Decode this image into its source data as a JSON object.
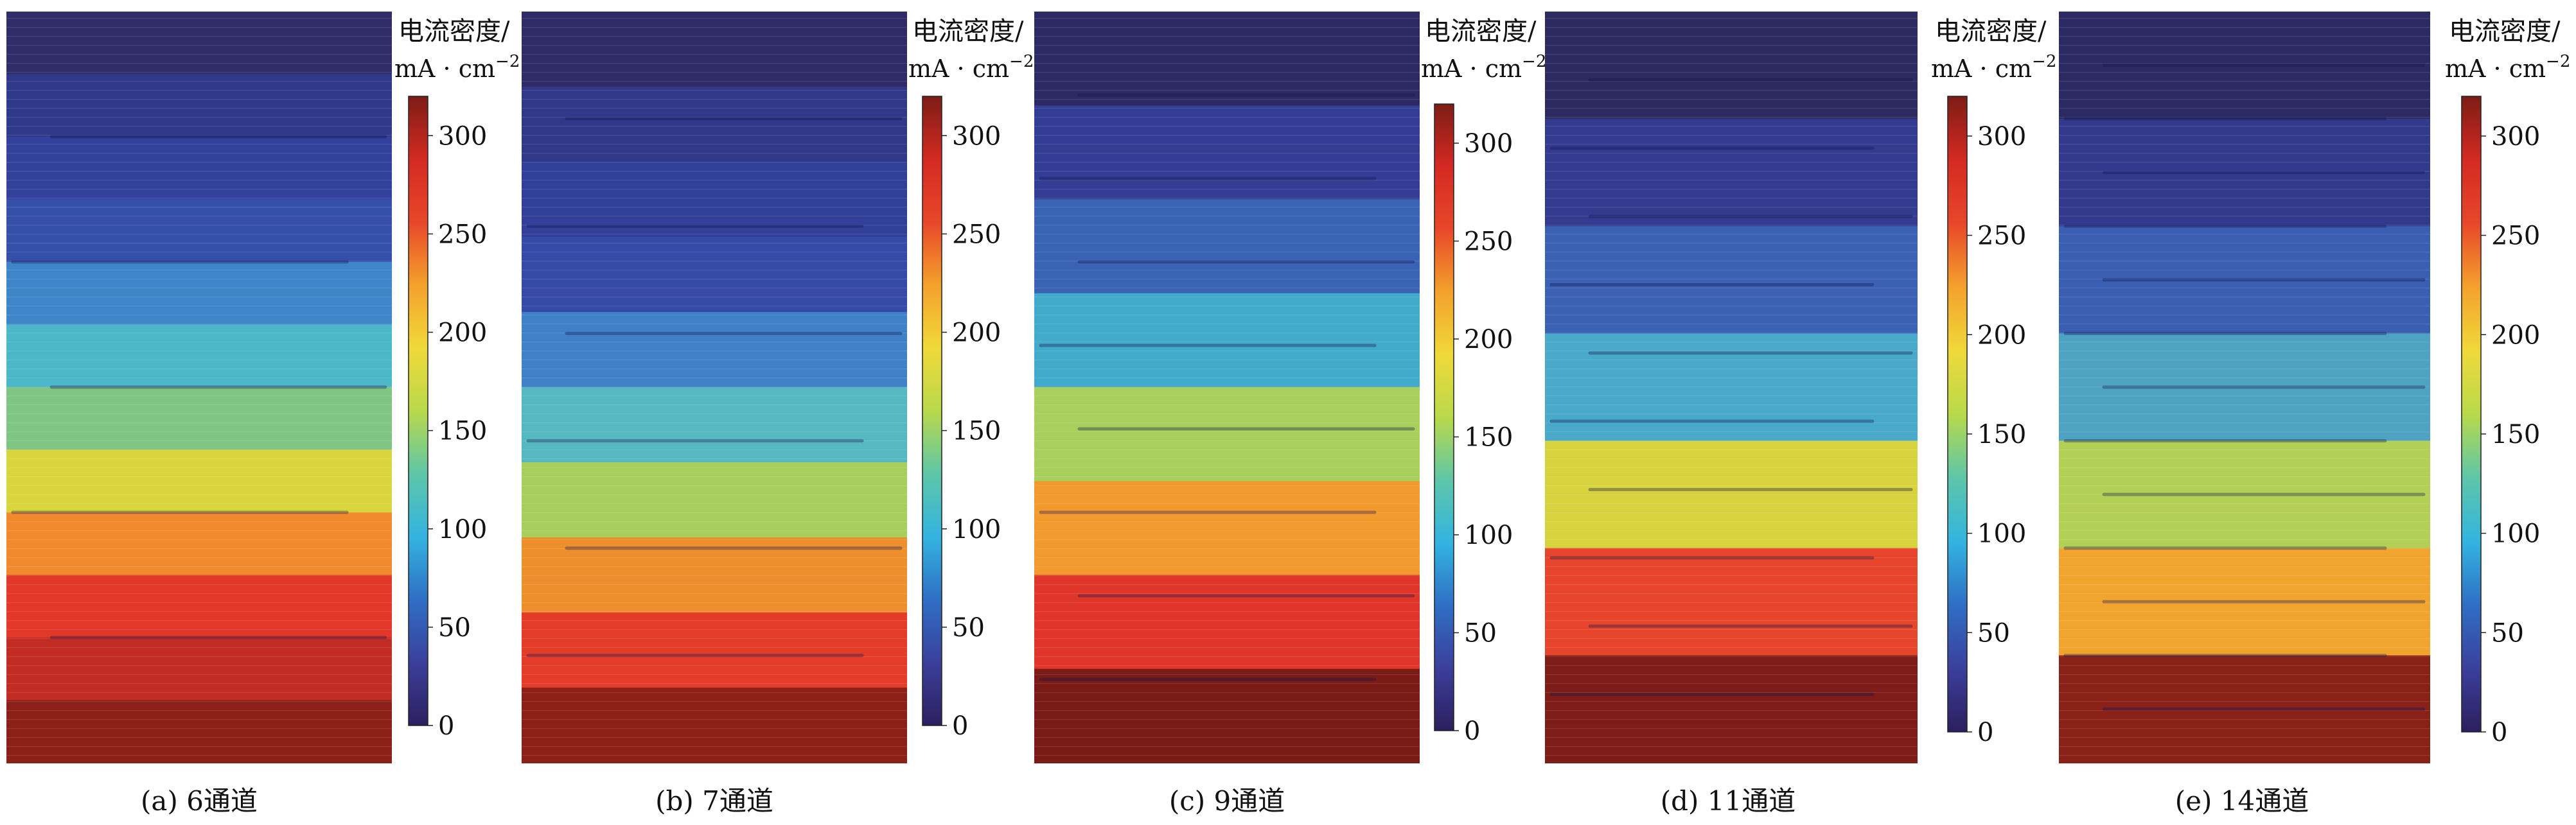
{
  "colorbar": {
    "title_line1": "电流密度/",
    "title_line2_prefix": "mA · cm",
    "title_line2_exp": "−2",
    "ticks": [
      "0",
      "50",
      "100",
      "150",
      "200",
      "250",
      "300"
    ],
    "range": [
      0,
      320
    ],
    "colormap": [
      "#2c1f5e",
      "#3b3f9c",
      "#2f6fc4",
      "#33b4e0",
      "#5ec6a8",
      "#b9d94a",
      "#f0d93a",
      "#f4a12c",
      "#e8472a",
      "#d42a22",
      "#7d1c16"
    ]
  },
  "panels": [
    {
      "caption": "(a) 6通道",
      "channels": 6,
      "bands": [
        {
          "color": "#2f2d6a"
        },
        {
          "color": "#303a8a"
        },
        {
          "color": "#33419c"
        },
        {
          "color": "#3550a8"
        },
        {
          "color": "#3f86c9"
        },
        {
          "color": "#4bb7c9"
        },
        {
          "color": "#7fc684"
        },
        {
          "color": "#d8d63c"
        },
        {
          "color": "#f08a2c"
        },
        {
          "color": "#e2382a"
        },
        {
          "color": "#c32b25"
        },
        {
          "color": "#8a2018"
        }
      ]
    },
    {
      "caption": "(b) 7通道",
      "channels": 7,
      "bands": [
        {
          "color": "#2e2b66"
        },
        {
          "color": "#313888"
        },
        {
          "color": "#33409a"
        },
        {
          "color": "#344aa6"
        },
        {
          "color": "#3f80c6"
        },
        {
          "color": "#56b9c2"
        },
        {
          "color": "#a6cf5e"
        },
        {
          "color": "#ee8e2c"
        },
        {
          "color": "#e33d2a"
        },
        {
          "color": "#8c2019"
        }
      ]
    },
    {
      "caption": "(c) 9通道",
      "channels": 9,
      "bands": [
        {
          "color": "#2c2a62"
        },
        {
          "color": "#333d93"
        },
        {
          "color": "#3a63b6"
        },
        {
          "color": "#42aacb"
        },
        {
          "color": "#a8d05c"
        },
        {
          "color": "#f29a2d"
        },
        {
          "color": "#e0362a"
        },
        {
          "color": "#7a1b16"
        }
      ]
    },
    {
      "caption": "(d) 11通道",
      "channels": 11,
      "bands": [
        {
          "color": "#2c2a60"
        },
        {
          "color": "#323b90"
        },
        {
          "color": "#3a61b4"
        },
        {
          "color": "#48a9c8"
        },
        {
          "color": "#d7d33e"
        },
        {
          "color": "#e6452b"
        },
        {
          "color": "#7e1c17"
        }
      ]
    },
    {
      "caption": "(e) 14通道",
      "channels": 14,
      "bands": [
        {
          "color": "#2c2a62"
        },
        {
          "color": "#333a8e"
        },
        {
          "color": "#3a5fb2"
        },
        {
          "color": "#4ea3c2"
        },
        {
          "color": "#b3d056"
        },
        {
          "color": "#f2a52e"
        },
        {
          "color": "#8a2119"
        }
      ]
    }
  ]
}
